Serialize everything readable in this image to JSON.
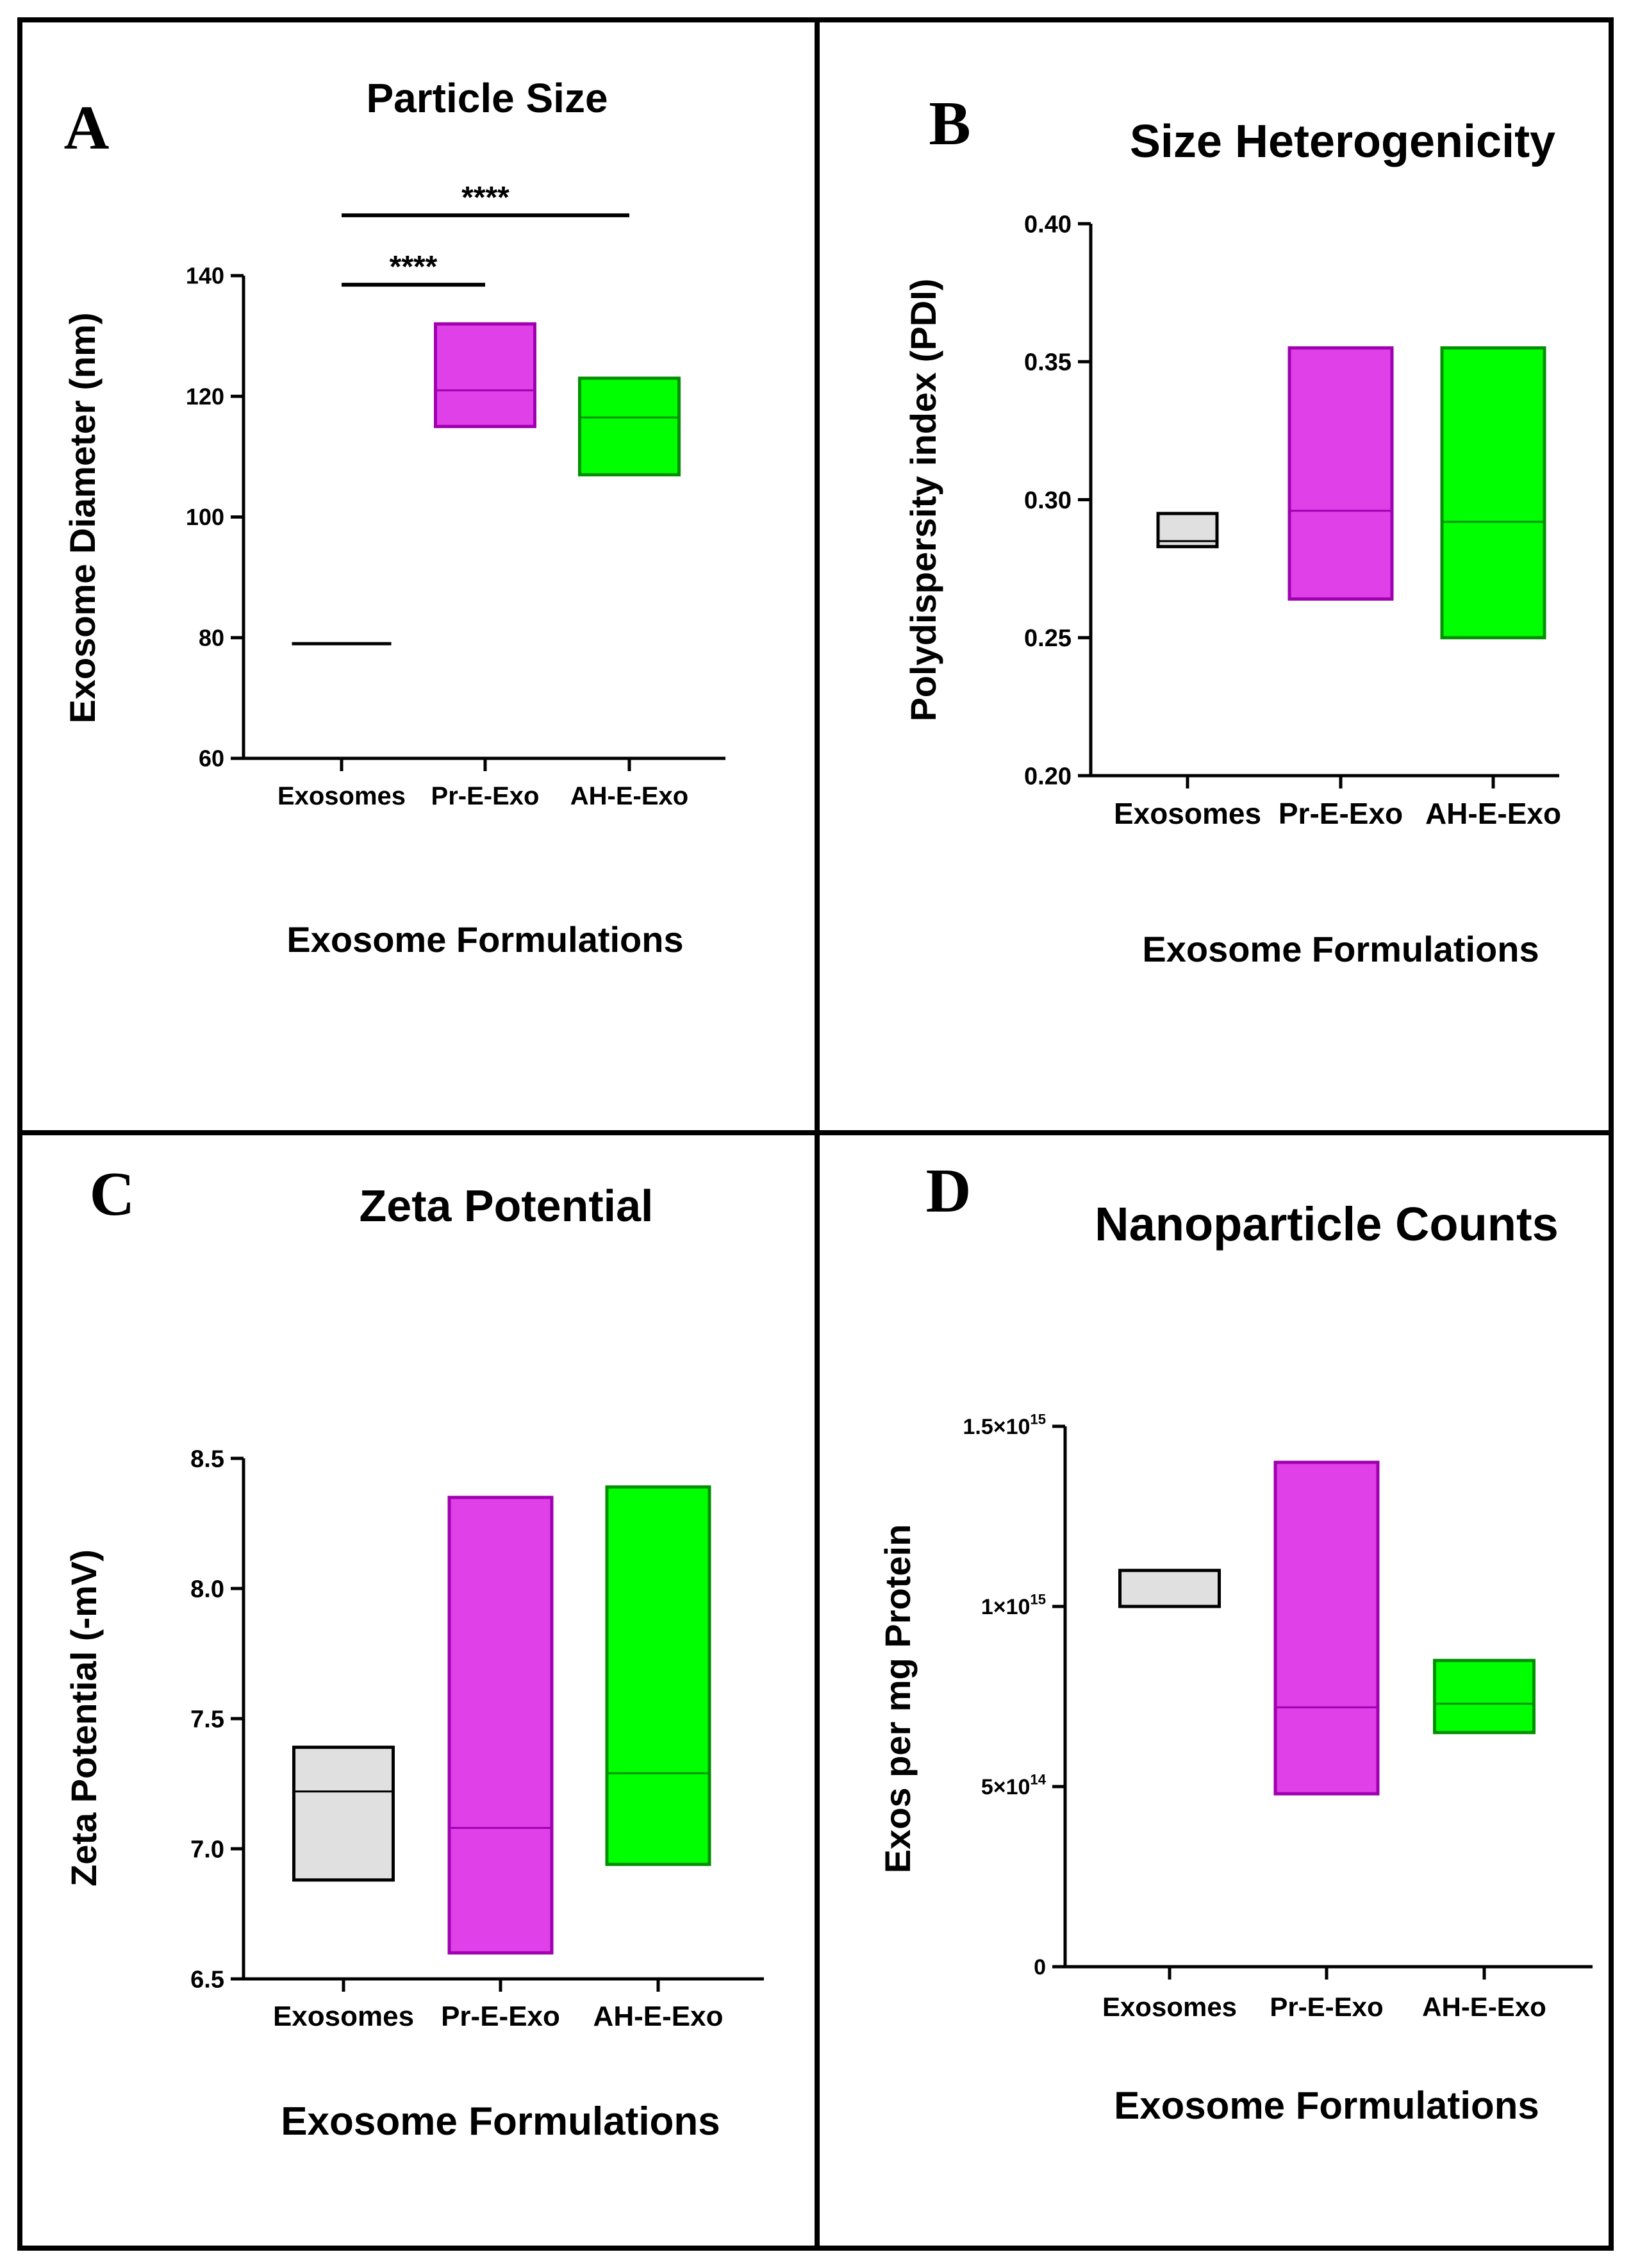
{
  "panels": [
    {
      "letter": "A",
      "chart_data": {
        "type": "box",
        "title": "Particle Size",
        "xlabel": "Exosome Formulations",
        "ylabel": "Exosome Diameter (nm)",
        "categories": [
          "Exosomes",
          "Pr-E-Exo",
          "AH-E-Exo"
        ],
        "ylim": [
          60,
          140
        ],
        "yticks": [
          60,
          80,
          100,
          120,
          140
        ],
        "ytick_labels": [
          "60",
          "80",
          "100",
          "120",
          "140"
        ],
        "boxes": [
          {
            "category": "Exosomes",
            "min": 79,
            "median": 79,
            "max": 79,
            "color": "#e0e0e0"
          },
          {
            "category": "Pr-E-Exo",
            "min": 115,
            "median": 121,
            "max": 132,
            "color": "#e040e8"
          },
          {
            "category": "AH-E-Exo",
            "min": 107,
            "median": 116.5,
            "max": 123,
            "color": "#00ff00"
          }
        ],
        "significance": [
          {
            "from": "Exosomes",
            "to": "Pr-E-Exo",
            "label": "****",
            "y": 138.5
          },
          {
            "from": "Exosomes",
            "to": "AH-E-Exo",
            "label": "****",
            "y": 150
          }
        ]
      }
    },
    {
      "letter": "B",
      "chart_data": {
        "type": "box",
        "title": "Size Heterogenicity",
        "xlabel": "Exosome Formulations",
        "ylabel": "Polydispersity index (PDI)",
        "categories": [
          "Exosomes",
          "Pr-E-Exo",
          "AH-E-Exo"
        ],
        "ylim": [
          0.2,
          0.4
        ],
        "yticks": [
          0.2,
          0.25,
          0.3,
          0.35,
          0.4
        ],
        "ytick_labels": [
          "0.20",
          "0.25",
          "0.30",
          "0.35",
          "0.40"
        ],
        "boxes": [
          {
            "category": "Exosomes",
            "min": 0.283,
            "median": 0.285,
            "max": 0.295,
            "color": "#e0e0e0"
          },
          {
            "category": "Pr-E-Exo",
            "min": 0.264,
            "median": 0.296,
            "max": 0.355,
            "color": "#e040e8"
          },
          {
            "category": "AH-E-Exo",
            "min": 0.25,
            "median": 0.292,
            "max": 0.355,
            "color": "#00ff00"
          }
        ],
        "significance": []
      }
    },
    {
      "letter": "C",
      "chart_data": {
        "type": "box",
        "title": "Zeta Potential",
        "xlabel": "Exosome Formulations",
        "ylabel": "Zeta Potential (-mV)",
        "categories": [
          "Exosomes",
          "Pr-E-Exo",
          "AH-E-Exo"
        ],
        "ylim": [
          6.5,
          8.5
        ],
        "yticks": [
          6.5,
          7.0,
          7.5,
          8.0,
          8.5
        ],
        "ytick_labels": [
          "6.5",
          "7.0",
          "7.5",
          "8.0",
          "8.5"
        ],
        "boxes": [
          {
            "category": "Exosomes",
            "min": 6.88,
            "median": 7.22,
            "max": 7.39,
            "color": "#e0e0e0"
          },
          {
            "category": "Pr-E-Exo",
            "min": 6.6,
            "median": 7.08,
            "max": 8.35,
            "color": "#e040e8"
          },
          {
            "category": "AH-E-Exo",
            "min": 6.94,
            "median": 7.29,
            "max": 8.39,
            "color": "#00ff00"
          }
        ],
        "significance": []
      }
    },
    {
      "letter": "D",
      "chart_data": {
        "type": "box",
        "title": "Nanoparticle Counts",
        "xlabel": "Exosome Formulations",
        "ylabel": "Exos per mg Protein",
        "categories": [
          "Exosomes",
          "Pr-E-Exo",
          "AH-E-Exo"
        ],
        "ylim": [
          0,
          1500000000000000.0
        ],
        "yticks": [
          0,
          500000000000000.0,
          1000000000000000.0,
          1500000000000000.0
        ],
        "ytick_labels": [
          {
            "base": "0",
            "exp": ""
          },
          {
            "base": "5×10",
            "exp": "14"
          },
          {
            "base": "1×10",
            "exp": "15"
          },
          {
            "base": "1.5×10",
            "exp": "15"
          }
        ],
        "boxes": [
          {
            "category": "Exosomes",
            "min": 1000000000000000.0,
            "median": 1100000000000000.0,
            "max": 1100000000000000.0,
            "color": "#e0e0e0"
          },
          {
            "category": "Pr-E-Exo",
            "min": 480000000000000.0,
            "median": 720000000000000.0,
            "max": 1400000000000000.0,
            "color": "#e040e8"
          },
          {
            "category": "AH-E-Exo",
            "min": 650000000000000.0,
            "median": 730000000000000.0,
            "max": 850000000000000.0,
            "color": "#00ff00"
          }
        ],
        "significance": []
      }
    }
  ]
}
